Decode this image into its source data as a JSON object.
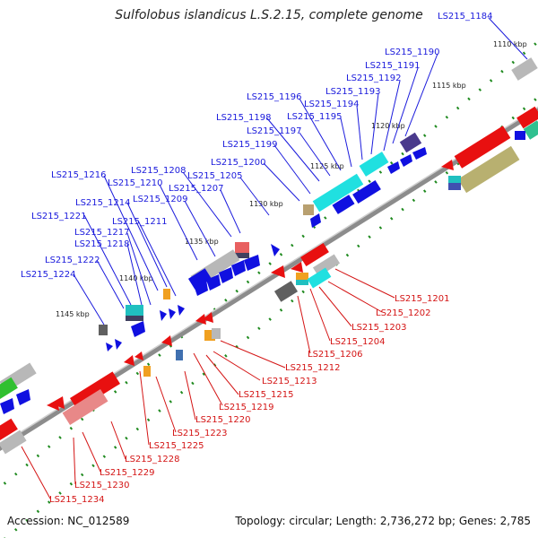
{
  "title": "Sulfolobus islandicus L.S.2.15, complete genome",
  "footer": {
    "accession": "Accession: NC_012589",
    "summary": "Topology: circular; Length: 2,736,272 bp; Genes: 2,785"
  },
  "scale_labels": [
    "1110 kbp",
    "1115 kbp",
    "1120 kbp",
    "1125 kbp",
    "1130 kbp",
    "1135 kbp",
    "1140 kbp",
    "1145 kbp"
  ],
  "forward_labels": [
    "LS215_1184",
    "LS215_1190",
    "LS215_1191",
    "LS215_1192",
    "LS215_1193",
    "LS215_1194",
    "LS215_1195",
    "LS215_1196",
    "LS215_1197",
    "LS215_1198",
    "LS215_1199",
    "LS215_1200",
    "LS215_1205",
    "LS215_1207",
    "LS215_1208",
    "LS215_1209",
    "LS215_1210",
    "LS215_1211",
    "LS215_1214",
    "LS215_1216",
    "LS215_1217",
    "LS215_1218",
    "LS215_1221",
    "LS215_1222",
    "LS215_1224"
  ],
  "reverse_labels": [
    "LS215_1201",
    "LS215_1202",
    "LS215_1203",
    "LS215_1204",
    "LS215_1206",
    "LS215_1212",
    "LS215_1213",
    "LS215_1215",
    "LS215_1219",
    "LS215_1220",
    "LS215_1223",
    "LS215_1225",
    "LS215_1228",
    "LS215_1229",
    "LS215_1230",
    "LS215_1234"
  ],
  "colors": {
    "forward_label": "#1a1adc",
    "reverse_label": "#d41414",
    "backbone": "#8c8c8c",
    "tick_dot": "#1f8a1f",
    "gene_forward": "#1010e0",
    "gene_reverse": "#e81010",
    "gene_cyan": "#20e0e0",
    "gene_gray": "#b8b8b8",
    "gene_darkgray": "#606060",
    "gene_olive": "#b8b070",
    "gene_orange": "#f0a020",
    "gene_purple": "#4a3a8c",
    "gene_green": "#30c030"
  }
}
